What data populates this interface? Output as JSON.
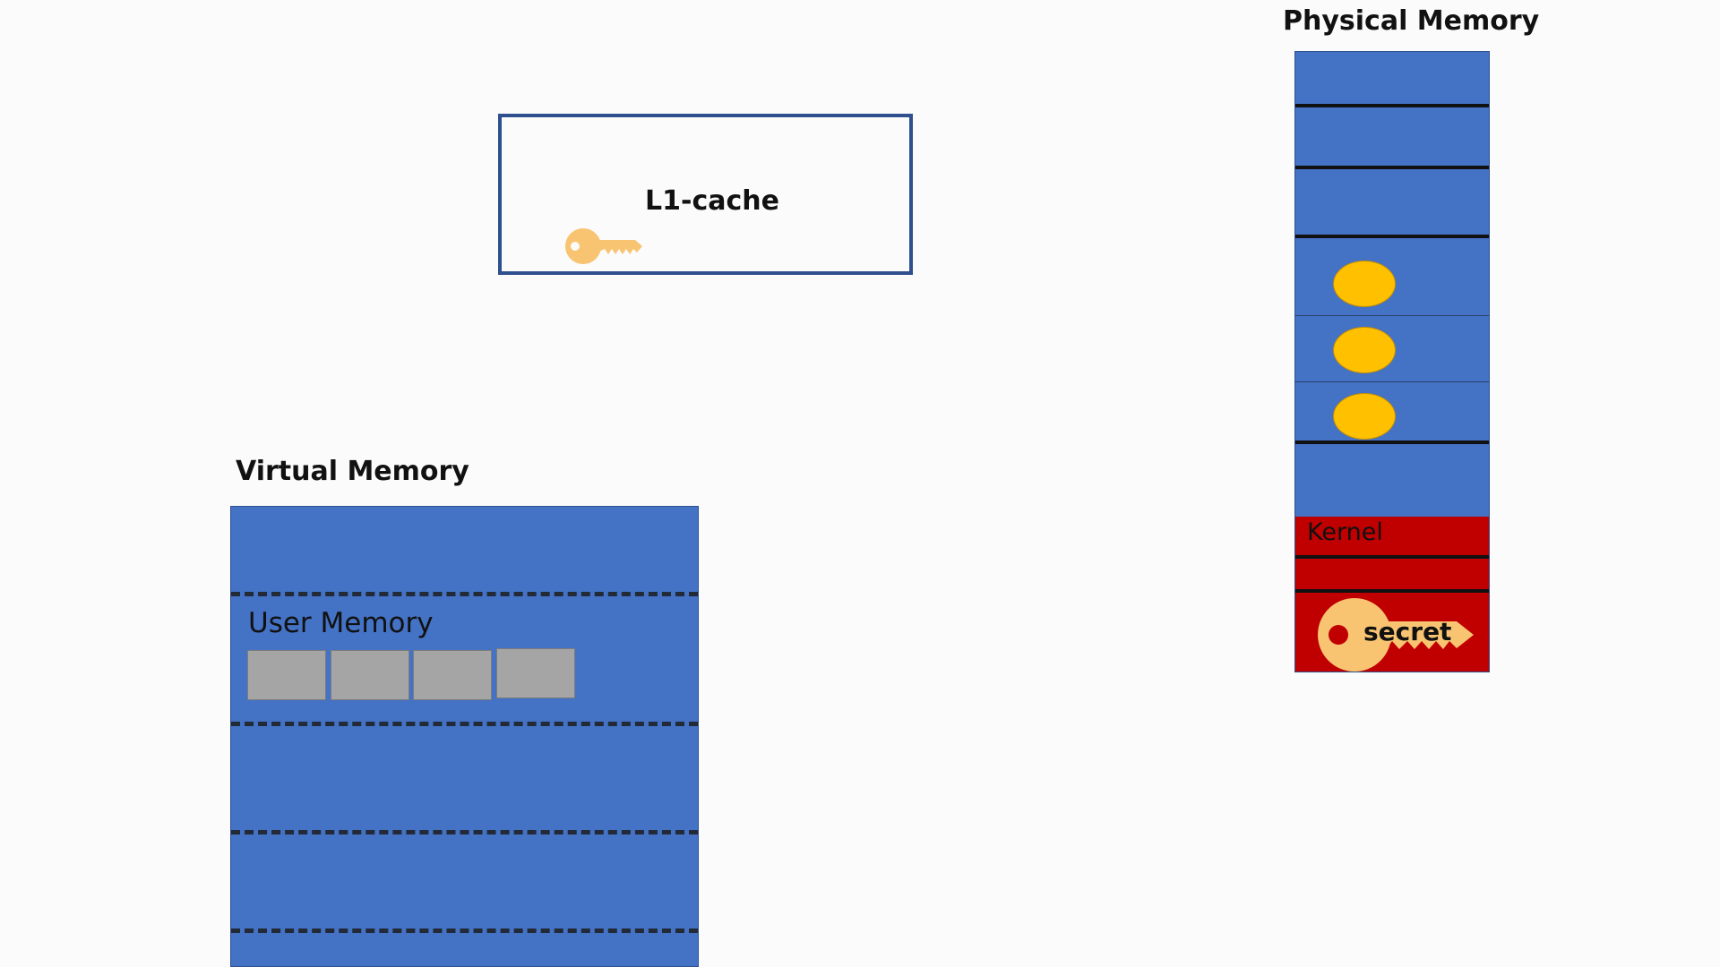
{
  "physical_memory": {
    "title": "Physical Memory",
    "kernel_label": "Kernel",
    "secret_label": "secret"
  },
  "l1_cache": {
    "label": "L1-cache"
  },
  "virtual_memory": {
    "title": "Virtual Memory",
    "user_memory_label": "User Memory"
  },
  "colors": {
    "memory_blue": "#4472c4",
    "kernel_red": "#c00000",
    "key_gold": "#f8c471",
    "coin_yellow": "#ffc000",
    "user_cell_gray": "#a5a5a5",
    "cache_border": "#2f4f8f"
  },
  "icons": {
    "cache_key": "key-icon",
    "secret_key": "key-icon",
    "memory_tokens": "coin-icon"
  }
}
